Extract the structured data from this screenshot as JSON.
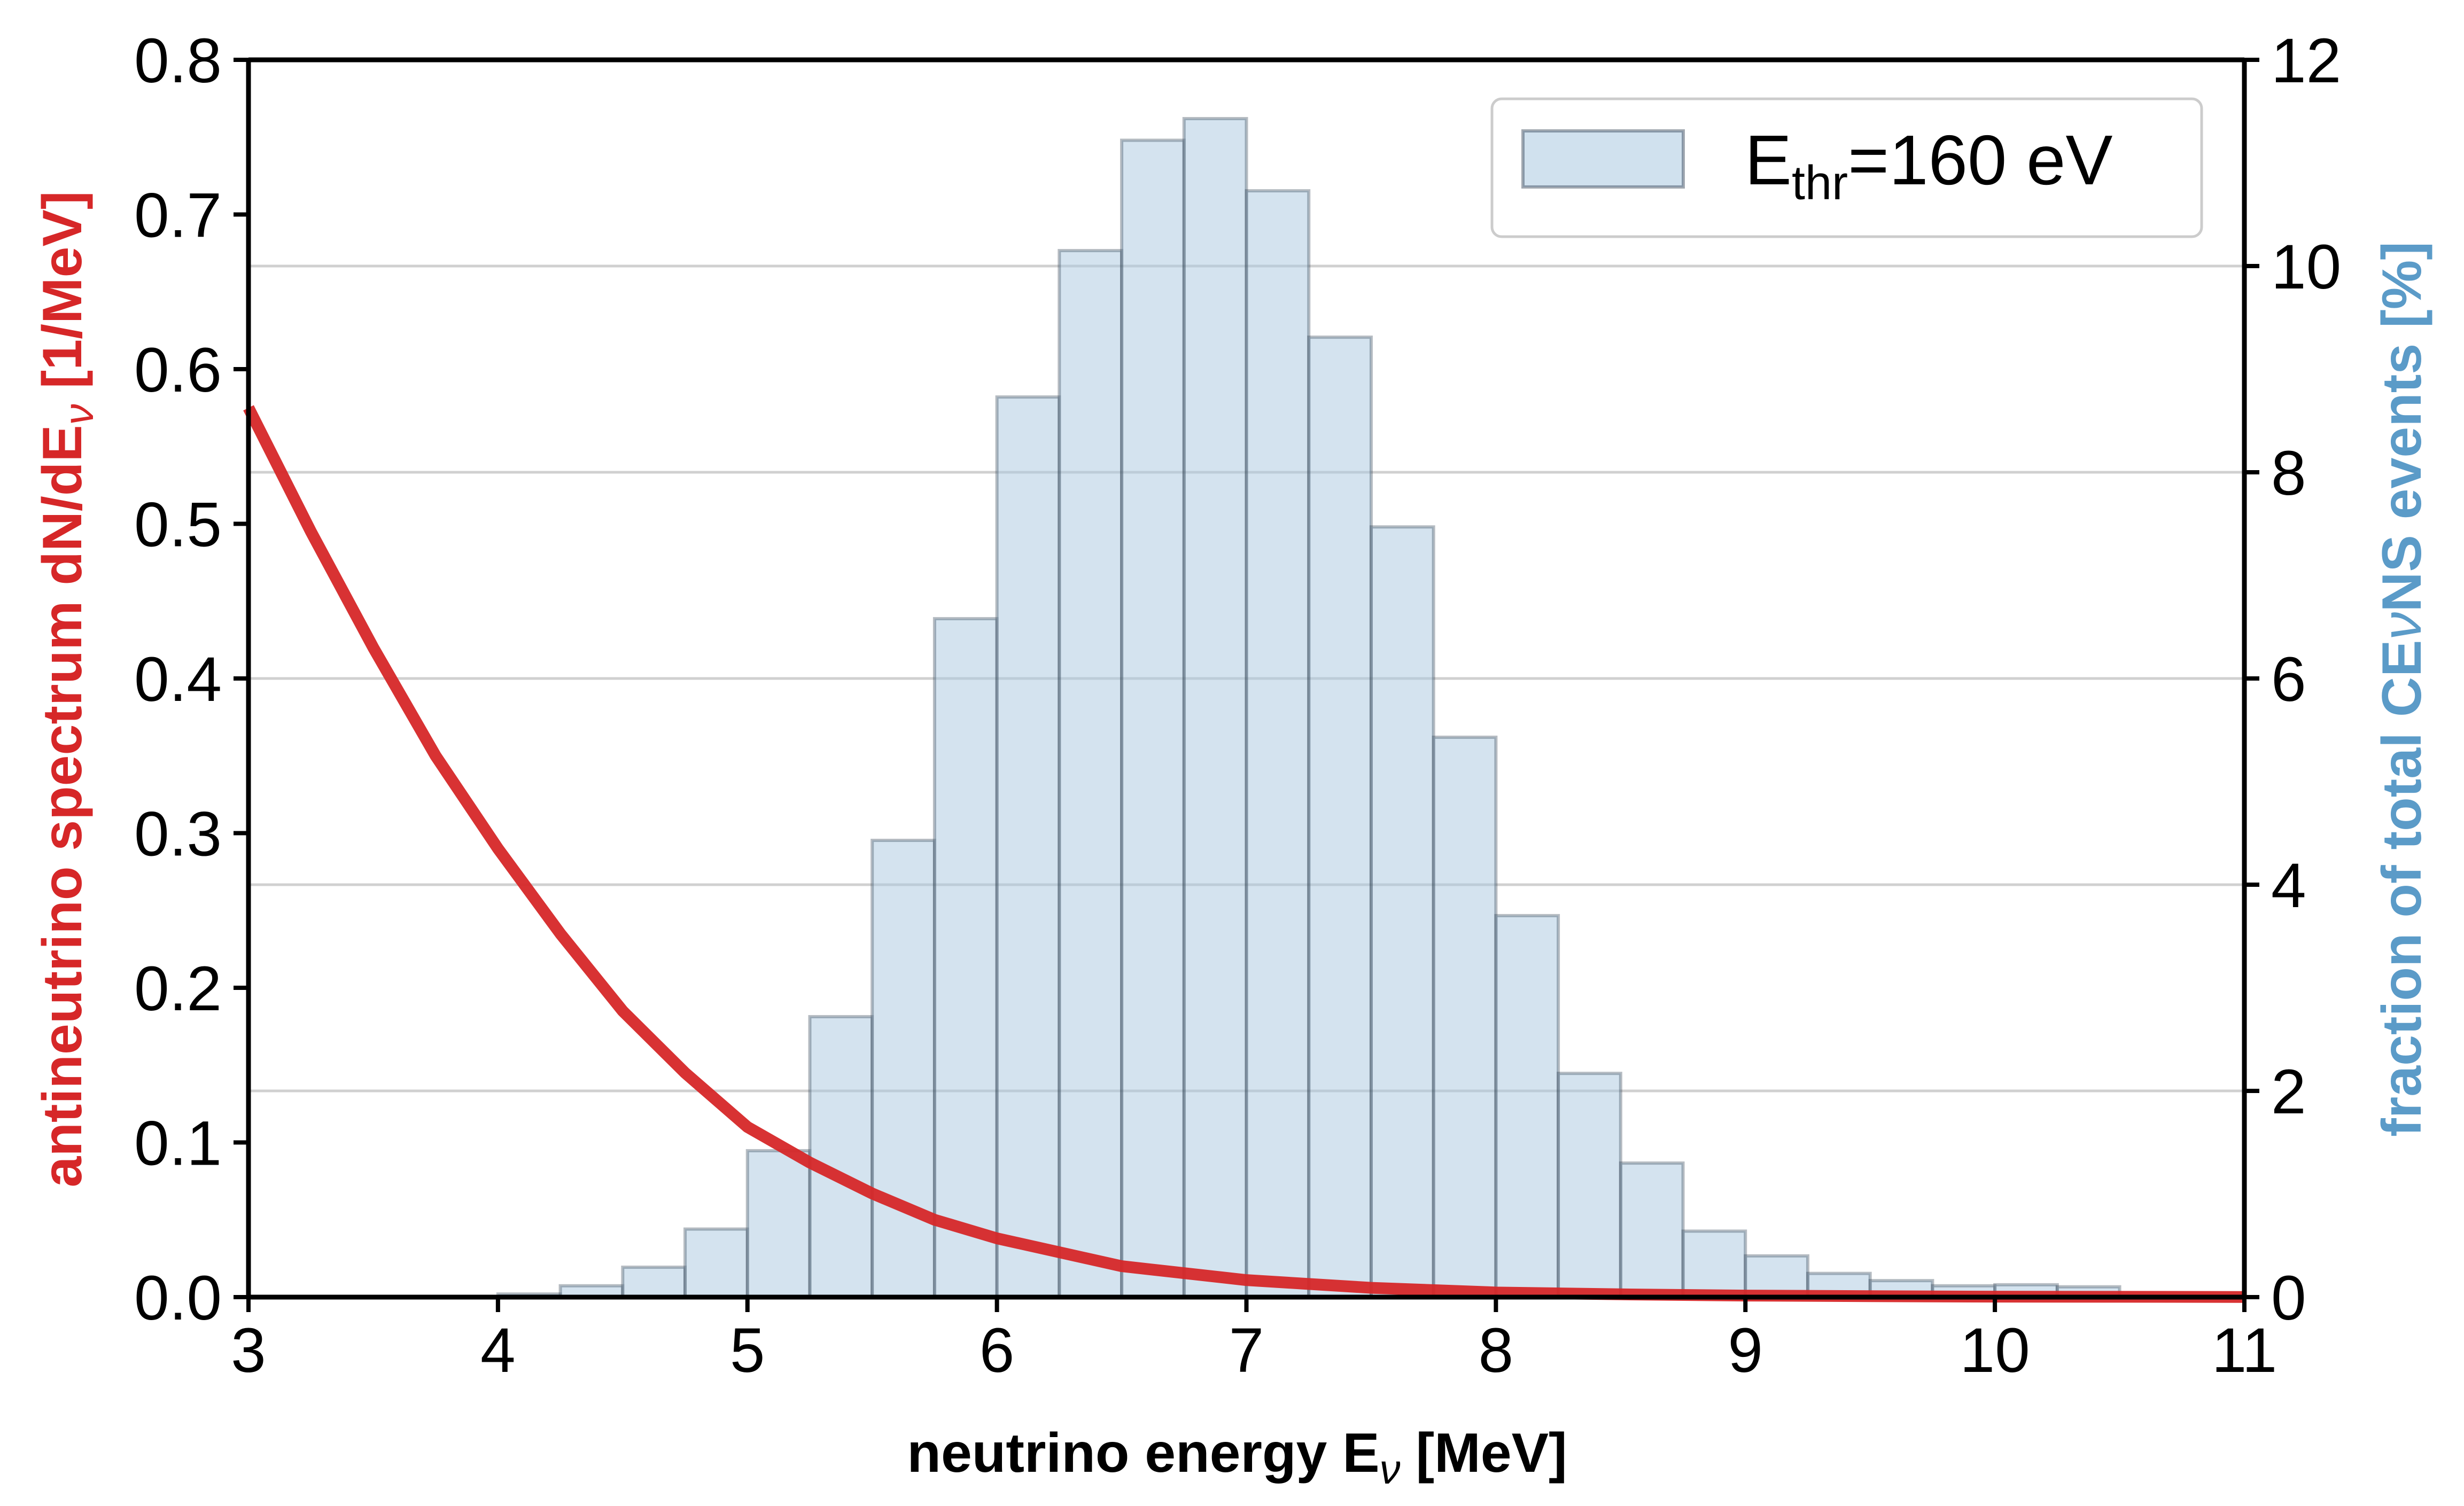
{
  "chart_data": {
    "type": "bar+line",
    "title": "",
    "xlabel": "neutrino energy Eν [MeV]",
    "xlabel_parts": {
      "main": "neutrino energy E",
      "sub": "ν",
      "unit": " [MeV]"
    },
    "xlim": [
      3,
      11
    ],
    "xticks": [
      "3",
      "4",
      "5",
      "6",
      "7",
      "8",
      "9",
      "10",
      "11"
    ],
    "left_axis": {
      "label": "antineutrino spectrum dN/dEν [1/MeV]",
      "label_parts": {
        "main": "antineutrino spectrum dN/dE",
        "sub": "ν",
        "unit": " [1/MeV]"
      },
      "color": "#d62728",
      "ylim": [
        0,
        0.8
      ],
      "ticks": [
        "0.0",
        "0.1",
        "0.2",
        "0.3",
        "0.4",
        "0.5",
        "0.6",
        "0.7",
        "0.8"
      ]
    },
    "right_axis": {
      "label": "fraction of total CEνNS events [%]",
      "label_parts": {
        "pre": "fraction of total CE",
        "nu": "ν",
        "post": "NS events [%]"
      },
      "color": "#5b9bc8",
      "ylim": [
        0,
        12
      ],
      "ticks": [
        "0",
        "2",
        "4",
        "6",
        "8",
        "10",
        "12"
      ]
    },
    "grid": "horizontal, right axis",
    "legend": {
      "position": "top-right",
      "label": "E_thr=160 eV",
      "label_parts": {
        "main": "E",
        "sub": "thr",
        "rest": "=160 eV"
      }
    },
    "histogram": {
      "name": "E_thr=160 eV",
      "axis": "right",
      "color": "#a9c8e0",
      "edge_color": "#2f3f4f",
      "bin_width": 0.25,
      "bin_starts": [
        4.0,
        4.25,
        4.5,
        4.75,
        5.0,
        5.25,
        5.5,
        5.75,
        6.0,
        6.25,
        6.5,
        6.75,
        7.0,
        7.25,
        7.5,
        7.75,
        8.0,
        8.25,
        8.5,
        8.75,
        9.0,
        9.25,
        9.5,
        9.75,
        10.0,
        10.25
      ],
      "values": [
        0.03,
        0.11,
        0.29,
        0.66,
        1.42,
        2.72,
        4.43,
        6.58,
        8.73,
        10.15,
        11.22,
        11.43,
        10.73,
        9.31,
        7.47,
        5.43,
        3.7,
        2.17,
        1.3,
        0.64,
        0.4,
        0.23,
        0.16,
        0.11,
        0.12,
        0.1
      ]
    },
    "spectrum": {
      "name": "antineutrino spectrum",
      "axis": "left",
      "color": "#d62728",
      "x": [
        3.0,
        3.25,
        3.5,
        3.75,
        4.0,
        4.25,
        4.5,
        4.75,
        5.0,
        5.25,
        5.5,
        5.75,
        6.0,
        6.5,
        7.0,
        7.5,
        8.0,
        8.5,
        9.0,
        9.5,
        10.0,
        10.5,
        11.0
      ],
      "y": [
        0.575,
        0.495,
        0.42,
        0.35,
        0.29,
        0.235,
        0.185,
        0.145,
        0.11,
        0.087,
        0.067,
        0.05,
        0.038,
        0.02,
        0.011,
        0.006,
        0.003,
        0.0018,
        0.001,
        0.0006,
        0.0003,
        0.0002,
        0.0001
      ]
    }
  }
}
